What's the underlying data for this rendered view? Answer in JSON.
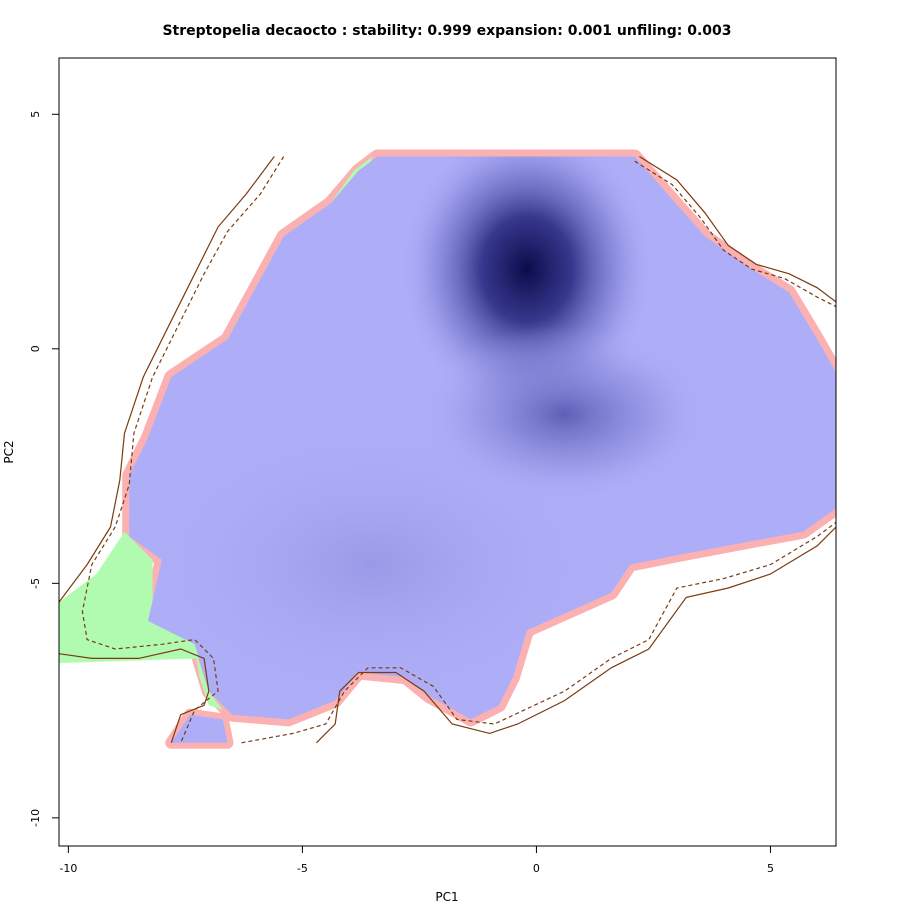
{
  "chart_data": {
    "type": "heatmap",
    "title": "Streptopelia decaocto : stability: 0.999 expansion: 0.001 unfiling: 0.003",
    "xlabel": "PC1",
    "ylabel": "PC2",
    "xlim": [
      -10.2,
      6.4
    ],
    "ylim": [
      -10.6,
      6.2
    ],
    "x_ticks": [
      -10,
      -5,
      0,
      5
    ],
    "y_ticks": [
      5,
      0,
      -5,
      -10
    ],
    "grid": false,
    "legend": "none",
    "category_colors": {
      "stability": "#aeaef8",
      "expansion": "#b1fbb1",
      "unfilling": "#fbb1b1",
      "density_dark": "#0b0b4a"
    },
    "density_peaks": [
      {
        "x": -0.2,
        "y": 1.7,
        "intensity": 1.0
      },
      {
        "x": 0.6,
        "y": -1.4,
        "intensity": 0.45
      },
      {
        "x": -3.5,
        "y": -4.6,
        "intensity": 0.15
      }
    ],
    "stability_region": [
      [
        -1.3,
        4.1
      ],
      [
        2.1,
        4.1
      ],
      [
        2.8,
        3.3
      ],
      [
        3.6,
        2.4
      ],
      [
        4.6,
        1.7
      ],
      [
        5.4,
        1.2
      ],
      [
        6.0,
        0.2
      ],
      [
        6.4,
        -0.5
      ],
      [
        6.4,
        -3.4
      ],
      [
        5.7,
        -3.9
      ],
      [
        4.6,
        -4.1
      ],
      [
        3.0,
        -4.4
      ],
      [
        2.0,
        -4.6
      ],
      [
        1.6,
        -5.2
      ],
      [
        0.7,
        -5.6
      ],
      [
        -0.2,
        -6.0
      ],
      [
        -0.5,
        -7.0
      ],
      [
        -0.8,
        -7.6
      ],
      [
        -1.4,
        -7.9
      ],
      [
        -2.3,
        -7.4
      ],
      [
        -2.8,
        -7.0
      ],
      [
        -3.8,
        -6.9
      ],
      [
        -4.3,
        -7.5
      ],
      [
        -5.3,
        -7.9
      ],
      [
        -6.5,
        -7.8
      ],
      [
        -7.0,
        -7.3
      ],
      [
        -7.3,
        -6.3
      ],
      [
        -8.3,
        -5.8
      ],
      [
        -8.0,
        -4.5
      ],
      [
        -8.7,
        -4.0
      ],
      [
        -8.7,
        -2.7
      ],
      [
        -8.3,
        -1.9
      ],
      [
        -7.8,
        -0.6
      ],
      [
        -6.6,
        0.2
      ],
      [
        -6.0,
        1.3
      ],
      [
        -5.4,
        2.4
      ],
      [
        -4.4,
        3.1
      ],
      [
        -3.8,
        3.8
      ],
      [
        -3.4,
        4.1
      ],
      [
        -1.3,
        4.1
      ]
    ],
    "stability_island": [
      [
        -7.8,
        -8.4
      ],
      [
        -6.6,
        -8.4
      ],
      [
        -6.7,
        -7.9
      ],
      [
        -7.4,
        -7.8
      ],
      [
        -7.8,
        -8.4
      ]
    ],
    "expansion_regions": [
      [
        [
          -3.5,
          4.1
        ],
        [
          -3.9,
          3.8
        ],
        [
          -4.4,
          3.1
        ],
        [
          -5.4,
          2.4
        ],
        [
          -6.0,
          1.3
        ],
        [
          -6.6,
          0.2
        ],
        [
          -6.3,
          0.1
        ],
        [
          -5.8,
          0.9
        ],
        [
          -5.2,
          2.0
        ],
        [
          -4.2,
          2.8
        ],
        [
          -3.7,
          3.5
        ],
        [
          -3.5,
          4.1
        ]
      ],
      [
        [
          -8.8,
          -3.9
        ],
        [
          -8.2,
          -4.5
        ],
        [
          -8.2,
          -5.5
        ],
        [
          -7.3,
          -6.2
        ],
        [
          -7.2,
          -6.6
        ],
        [
          -10.2,
          -6.7
        ],
        [
          -10.2,
          -5.4
        ],
        [
          -9.4,
          -4.8
        ],
        [
          -8.8,
          -3.9
        ]
      ],
      [
        [
          -7.3,
          -6.4
        ],
        [
          -7.0,
          -7.3
        ],
        [
          -6.7,
          -7.7
        ],
        [
          -7.0,
          -7.6
        ],
        [
          -7.2,
          -7.0
        ],
        [
          -7.3,
          -6.4
        ]
      ]
    ],
    "unfilling_pixels_boundary": "stability_region_edge",
    "contours": [
      {
        "style": "solid",
        "points": [
          [
            -5.6,
            4.1
          ],
          [
            -6.2,
            3.3
          ],
          [
            -6.8,
            2.6
          ],
          [
            -7.3,
            1.6
          ],
          [
            -7.8,
            0.6
          ],
          [
            -8.4,
            -0.6
          ],
          [
            -8.8,
            -1.8
          ],
          [
            -8.9,
            -2.8
          ],
          [
            -9.1,
            -3.8
          ],
          [
            -9.6,
            -4.6
          ],
          [
            -10.2,
            -5.4
          ]
        ]
      },
      {
        "style": "solid",
        "points": [
          [
            -10.2,
            -6.5
          ],
          [
            -9.5,
            -6.6
          ],
          [
            -8.5,
            -6.6
          ],
          [
            -7.6,
            -6.4
          ],
          [
            -7.1,
            -6.6
          ],
          [
            -7.0,
            -7.3
          ],
          [
            -7.1,
            -7.6
          ],
          [
            -7.6,
            -7.8
          ],
          [
            -7.8,
            -8.4
          ]
        ]
      },
      {
        "style": "solid",
        "points": [
          [
            -4.7,
            -8.4
          ],
          [
            -4.3,
            -8.0
          ],
          [
            -4.2,
            -7.3
          ],
          [
            -3.8,
            -6.9
          ],
          [
            -3.0,
            -6.9
          ],
          [
            -2.4,
            -7.3
          ],
          [
            -1.8,
            -8.0
          ],
          [
            -1.0,
            -8.2
          ],
          [
            -0.4,
            -8.0
          ],
          [
            0.6,
            -7.5
          ],
          [
            1.6,
            -6.8
          ],
          [
            2.4,
            -6.4
          ],
          [
            3.2,
            -5.3
          ],
          [
            4.1,
            -5.1
          ],
          [
            5.0,
            -4.8
          ],
          [
            6.0,
            -4.2
          ],
          [
            6.4,
            -3.8
          ]
        ]
      },
      {
        "style": "solid",
        "points": [
          [
            2.2,
            4.1
          ],
          [
            3.0,
            3.6
          ],
          [
            3.6,
            2.9
          ],
          [
            4.1,
            2.2
          ],
          [
            4.7,
            1.8
          ],
          [
            5.4,
            1.6
          ],
          [
            6.0,
            1.3
          ],
          [
            6.4,
            1.0
          ]
        ]
      },
      {
        "style": "dashed",
        "points": [
          [
            -5.4,
            4.1
          ],
          [
            -5.9,
            3.3
          ],
          [
            -6.6,
            2.5
          ],
          [
            -7.1,
            1.6
          ],
          [
            -7.6,
            0.6
          ],
          [
            -8.2,
            -0.6
          ],
          [
            -8.6,
            -1.8
          ],
          [
            -8.7,
            -2.9
          ],
          [
            -9.0,
            -3.8
          ],
          [
            -9.5,
            -4.6
          ],
          [
            -9.7,
            -5.6
          ],
          [
            -9.6,
            -6.2
          ],
          [
            -9.0,
            -6.4
          ],
          [
            -8.0,
            -6.3
          ],
          [
            -7.3,
            -6.2
          ],
          [
            -6.9,
            -6.6
          ],
          [
            -6.8,
            -7.3
          ],
          [
            -7.3,
            -7.7
          ],
          [
            -7.6,
            -8.4
          ]
        ]
      },
      {
        "style": "dashed",
        "points": [
          [
            -6.3,
            -8.4
          ],
          [
            -5.2,
            -8.2
          ],
          [
            -4.5,
            -8.0
          ],
          [
            -4.1,
            -7.3
          ],
          [
            -3.6,
            -6.8
          ],
          [
            -2.9,
            -6.8
          ],
          [
            -2.2,
            -7.2
          ],
          [
            -1.7,
            -7.9
          ],
          [
            -0.9,
            -8.0
          ],
          [
            0.6,
            -7.3
          ],
          [
            1.6,
            -6.6
          ],
          [
            2.4,
            -6.2
          ],
          [
            3.0,
            -5.1
          ],
          [
            4.0,
            -4.9
          ],
          [
            5.0,
            -4.6
          ],
          [
            6.0,
            -4.0
          ],
          [
            6.4,
            -3.7
          ]
        ]
      },
      {
        "style": "dashed",
        "points": [
          [
            2.1,
            4.0
          ],
          [
            2.9,
            3.5
          ],
          [
            3.5,
            2.8
          ],
          [
            4.0,
            2.1
          ],
          [
            4.6,
            1.7
          ],
          [
            5.3,
            1.5
          ],
          [
            6.0,
            1.1
          ],
          [
            6.4,
            0.9
          ]
        ]
      }
    ]
  }
}
